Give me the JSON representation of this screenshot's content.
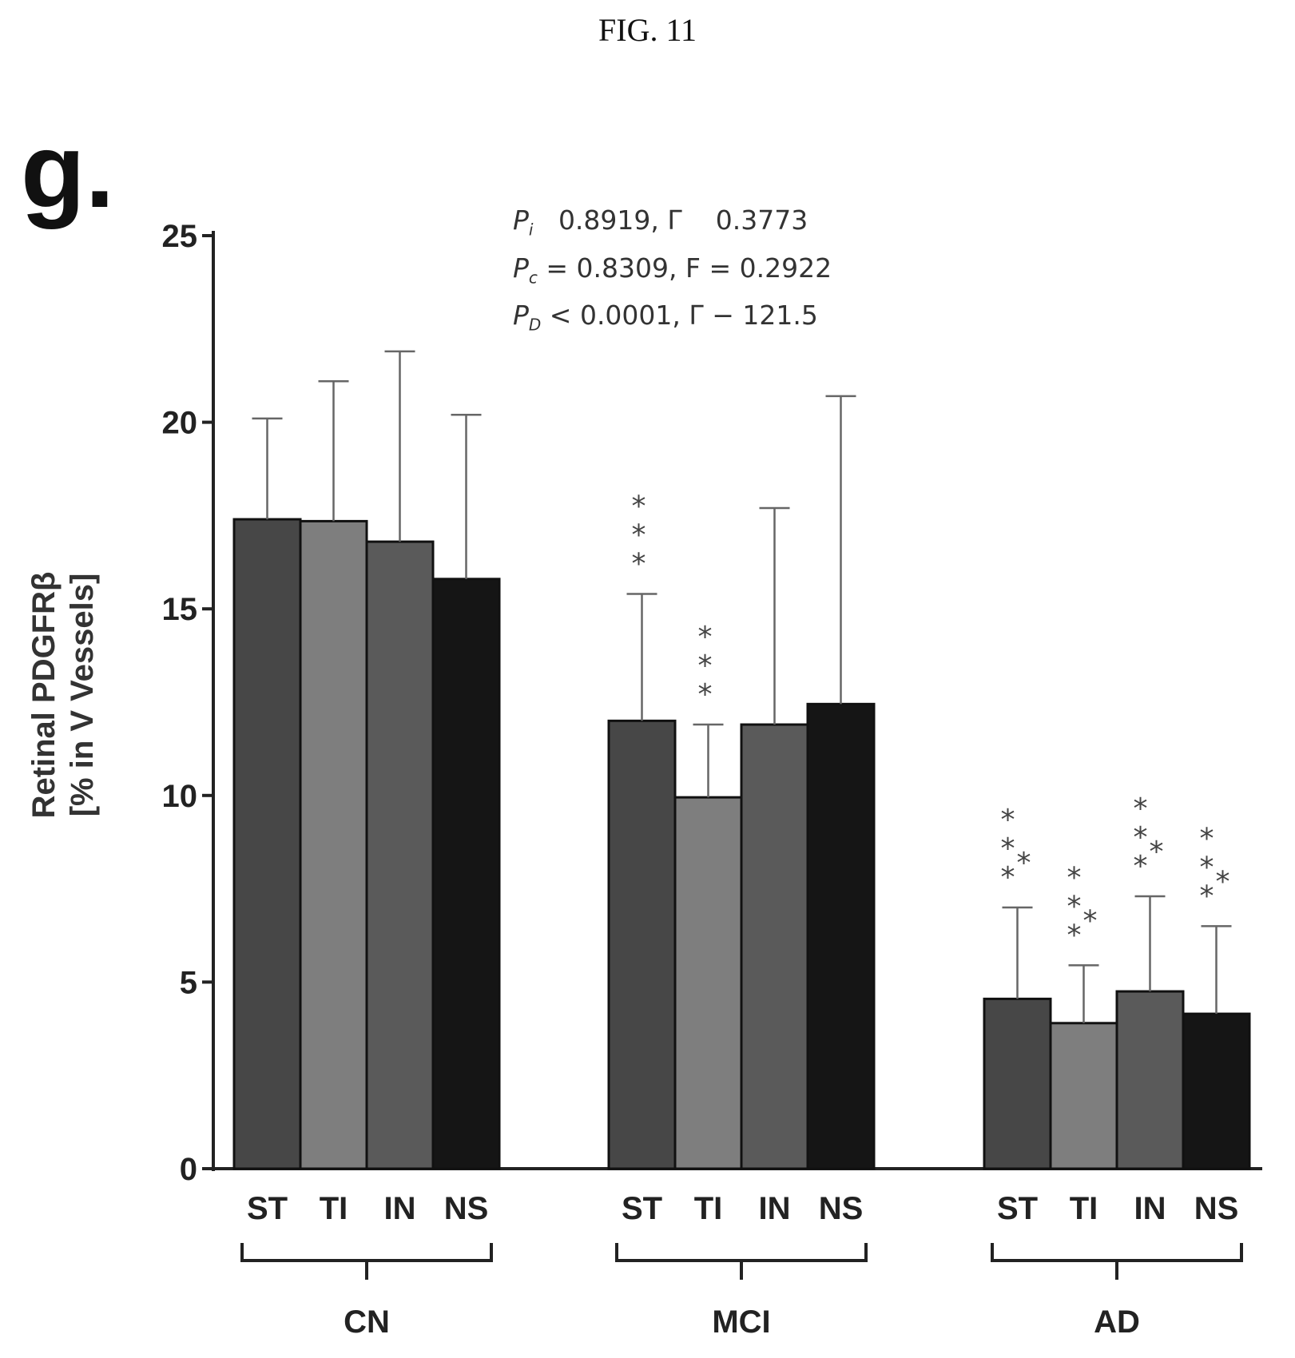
{
  "figure_title": "FIG. 11",
  "panel_letter": "g.",
  "stats": [
    {
      "symbol": "P",
      "sub": "i",
      "rest": "   0.8919, Γ    0.3773"
    },
    {
      "symbol": "P",
      "sub": "c",
      "rest": " = 0.8309, F = 0.2922"
    },
    {
      "symbol": "P",
      "sub": "D",
      "rest": " < 0.0001, Γ − 121.5"
    }
  ],
  "chart_data": {
    "type": "bar",
    "ylabel_lines": [
      "Retinal PDGFRβ",
      "[% in V Vessels]"
    ],
    "ylim": [
      0,
      25
    ],
    "yticks": [
      0,
      5,
      10,
      15,
      20,
      25
    ],
    "grid": false,
    "series_colors": {
      "ST": "#474747",
      "TI": "#7e7e7e",
      "IN": "#5a5a5a",
      "NS": "#151515"
    },
    "groups": [
      {
        "name": "CN",
        "bars": [
          {
            "label": "ST",
            "value": 17.4,
            "error": 20.1,
            "stars": ""
          },
          {
            "label": "TI",
            "value": 17.35,
            "error": 21.1,
            "stars": ""
          },
          {
            "label": "IN",
            "value": 16.8,
            "error": 21.9,
            "stars": ""
          },
          {
            "label": "NS",
            "value": 15.8,
            "error": 20.2,
            "stars": ""
          }
        ]
      },
      {
        "name": "MCI",
        "bars": [
          {
            "label": "ST",
            "value": 12.0,
            "error": 15.4,
            "stars": "***"
          },
          {
            "label": "TI",
            "value": 9.95,
            "error": 11.9,
            "stars": "***"
          },
          {
            "label": "IN",
            "value": 11.9,
            "error": 17.7,
            "stars": ""
          },
          {
            "label": "NS",
            "value": 12.45,
            "error": 20.7,
            "stars": ""
          }
        ]
      },
      {
        "name": "AD",
        "bars": [
          {
            "label": "ST",
            "value": 4.55,
            "error": 7.0,
            "stars": "****"
          },
          {
            "label": "TI",
            "value": 3.9,
            "error": 5.45,
            "stars": "****"
          },
          {
            "label": "IN",
            "value": 4.75,
            "error": 7.3,
            "stars": "****"
          },
          {
            "label": "NS",
            "value": 4.15,
            "error": 6.5,
            "stars": "****"
          }
        ]
      }
    ]
  }
}
